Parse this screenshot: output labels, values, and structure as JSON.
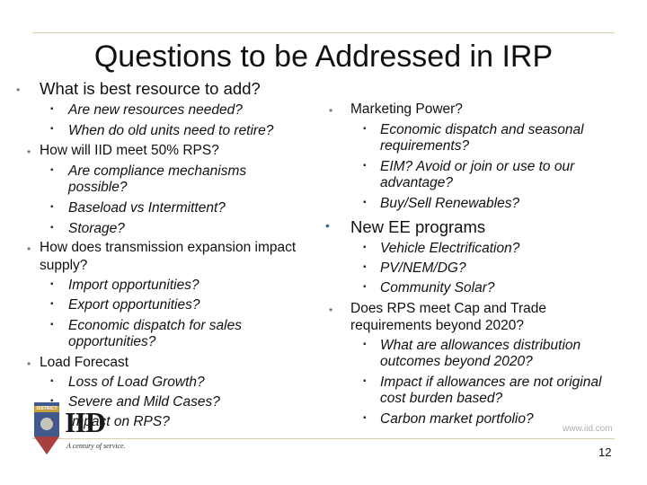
{
  "title": "Questions to be Addressed in IRP",
  "left": {
    "q1": "What is best resource to add?",
    "q1_sub": [
      "Are new resources needed?",
      "When do old units need to retire?"
    ],
    "q2": "How will IID meet 50% RPS?",
    "q2_sub": [
      "Are compliance mechanisms",
      "possible?",
      "Baseload vs Intermittent?",
      "Storage?"
    ],
    "q3a": "How does transmission expansion impact",
    "q3b": "supply?",
    "q3_sub": [
      "Import opportunities?",
      "Export opportunities?",
      "Economic dispatch for sales",
      "opportunities?"
    ],
    "q4": "Load Forecast",
    "q4_sub": [
      "Loss of Load Growth?",
      "Severe and Mild Cases?",
      "Impact on RPS?"
    ]
  },
  "right": {
    "r1": "Marketing Power?",
    "r1_sub": [
      "Economic dispatch and seasonal",
      "requirements?",
      "EIM? Avoid or join or use to our",
      "advantage?",
      "Buy/Sell Renewables?"
    ],
    "r2": "New EE programs",
    "r2_sub": [
      "Vehicle Electrification?",
      "PV/NEM/DG?",
      "Community Solar?"
    ],
    "r3a": "Does RPS meet Cap and Trade",
    "r3b": "requirements beyond 2020?",
    "r3_sub": [
      "What are allowances distribution",
      "outcomes beyond 2020?",
      "Impact if allowances are not original",
      "cost burden based?",
      "Carbon market portfolio?"
    ]
  },
  "footer": {
    "url": "www.iid.com",
    "page_number": "12",
    "logo_text": "IID",
    "logo_badge": "DISTRICT",
    "logo_tagline": "A century of service."
  },
  "colors": {
    "accent_rule": "#d8cfa8",
    "bullet": "#6f7a8a",
    "big_bullet": "#2a6f9e"
  }
}
